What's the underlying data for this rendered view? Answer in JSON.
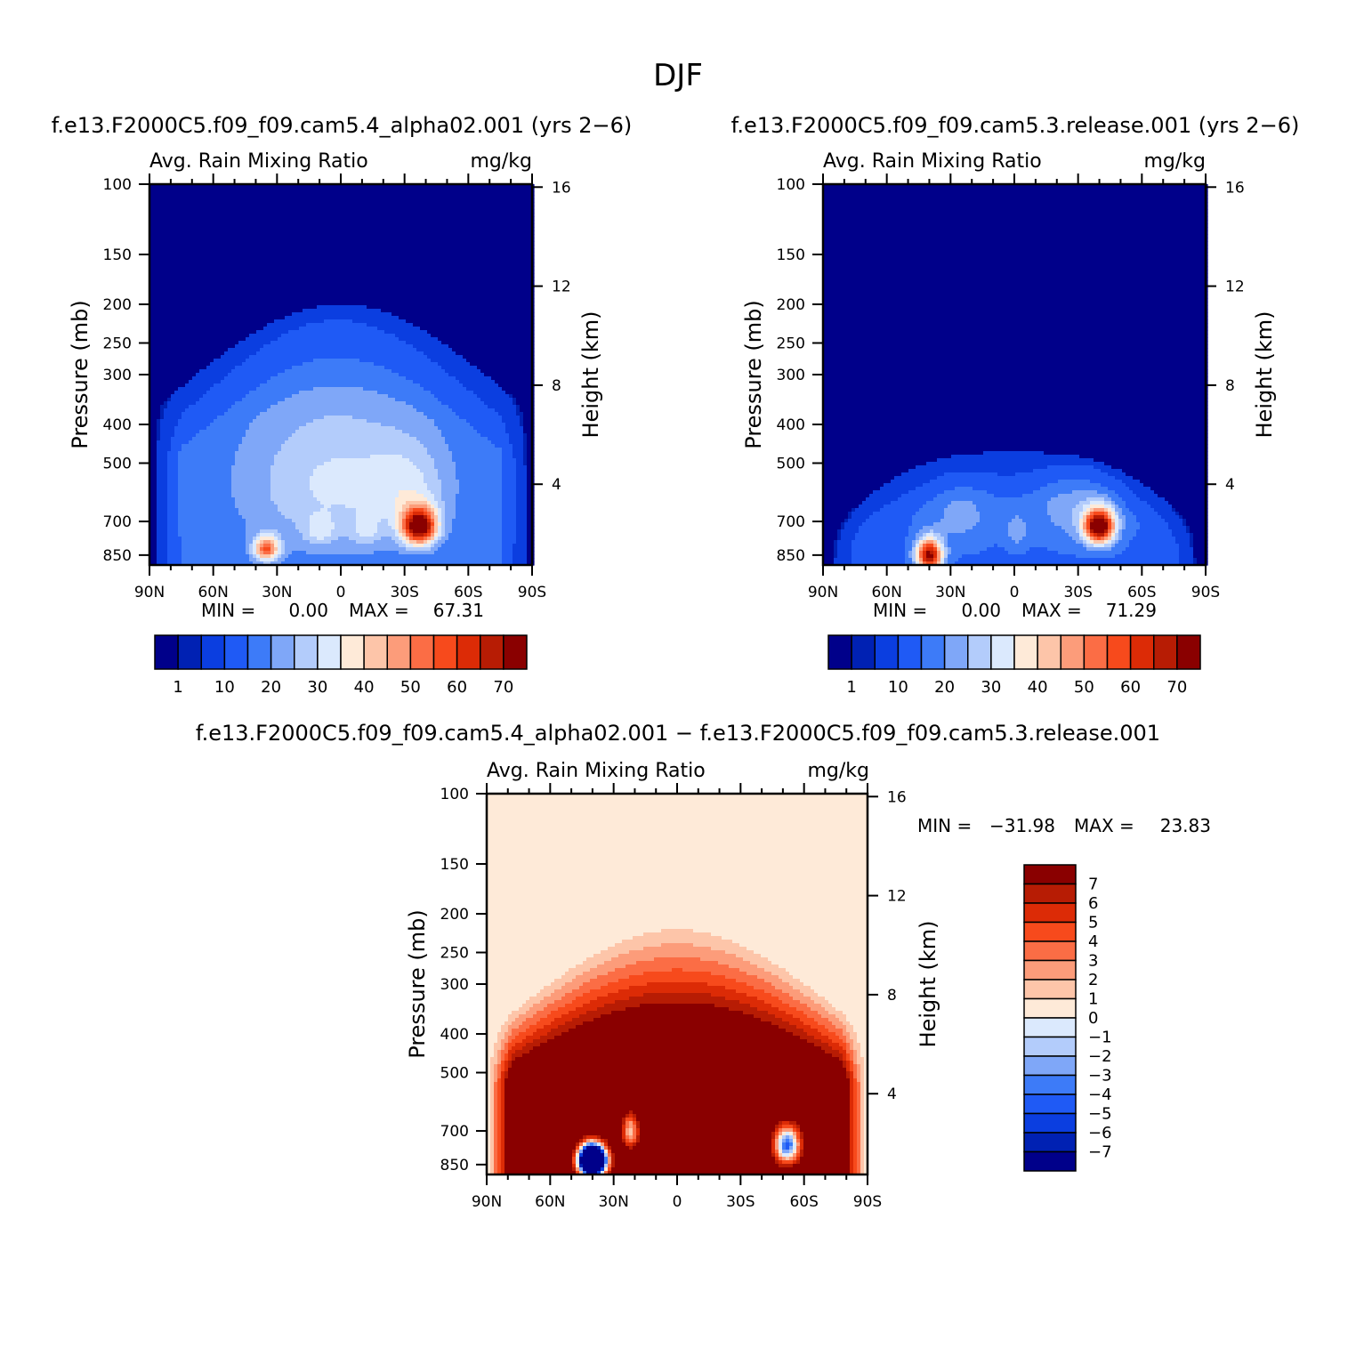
{
  "page_title": "DJF",
  "colors": {
    "full_scale": [
      "#00008a",
      "#0021b3",
      "#0b3ee0",
      "#1f5af5",
      "#3d7bf8",
      "#7fa7f8",
      "#b3ccfb",
      "#dbe9fd",
      "#feead8",
      "#fdc5a9",
      "#fc9c7a",
      "#fb6d45",
      "#f74a1c",
      "#dc2b06",
      "#b71c04",
      "#8a0000"
    ],
    "diff_scale": [
      "#00008a",
      "#0021b3",
      "#0b3ee0",
      "#1f5af5",
      "#3d7bf8",
      "#7fa7f8",
      "#b3ccfb",
      "#dbe9fd",
      "#feead8",
      "#fdc5a9",
      "#fc9c7a",
      "#fb6d45",
      "#f74a1c",
      "#dc2b06",
      "#b71c04",
      "#8a0000"
    ]
  },
  "chart_data": [
    {
      "type": "heatmap",
      "title": "f.e13.F2000C5.f09_f09.cam5.4_alpha02.001 (yrs 2−6)",
      "variable": "Avg. Rain Mixing Ratio",
      "units": "mg/kg",
      "ylabel": "Pressure (mb)",
      "y2label": "Height (km)",
      "x_ticks": [
        "90N",
        "60N",
        "30N",
        "0",
        "30S",
        "60S",
        "90S"
      ],
      "y_ticks": [
        "100",
        "150",
        "200",
        "250",
        "300",
        "400",
        "500",
        "700",
        "850"
      ],
      "y2_ticks": [
        "16",
        "12",
        "8",
        "4"
      ],
      "ylim": [
        850,
        100
      ],
      "y_scale": "log",
      "min_label": "MIN =",
      "min_value": "0.00",
      "max_label": "MAX =",
      "max_value": "67.31",
      "colorbar_labels": [
        "1",
        "10",
        "20",
        "30",
        "40",
        "50",
        "60",
        "70"
      ],
      "features": [
        {
          "lat": -37,
          "p": 720,
          "peak": 67.31
        },
        {
          "lat": 37,
          "p": 820,
          "peak": 45
        }
      ]
    },
    {
      "type": "heatmap",
      "title": "f.e13.F2000C5.f09_f09.cam5.3.release.001 (yrs 2−6)",
      "variable": "Avg. Rain Mixing Ratio",
      "units": "mg/kg",
      "ylabel": "Pressure (mb)",
      "y2label": "Height (km)",
      "x_ticks": [
        "90N",
        "60N",
        "30N",
        "0",
        "30S",
        "60S",
        "90S"
      ],
      "y_ticks": [
        "100",
        "150",
        "200",
        "250",
        "300",
        "400",
        "500",
        "700",
        "850"
      ],
      "y2_ticks": [
        "16",
        "12",
        "8",
        "4"
      ],
      "ylim": [
        850,
        100
      ],
      "y_scale": "log",
      "min_label": "MIN =",
      "min_value": "0.00",
      "max_label": "MAX =",
      "max_value": "71.29",
      "colorbar_labels": [
        "1",
        "10",
        "20",
        "30",
        "40",
        "50",
        "60",
        "70"
      ],
      "features": [
        {
          "lat": -40,
          "p": 720,
          "peak": 71.29
        },
        {
          "lat": 40,
          "p": 850,
          "peak": 62
        }
      ]
    },
    {
      "type": "heatmap",
      "title": "f.e13.F2000C5.f09_f09.cam5.4_alpha02.001 − f.e13.F2000C5.f09_f09.cam5.3.release.001",
      "variable": "Avg. Rain Mixing Ratio",
      "units": "mg/kg",
      "ylabel": "Pressure (mb)",
      "y2label": "Height (km)",
      "x_ticks": [
        "90N",
        "60N",
        "30N",
        "0",
        "30S",
        "60S",
        "90S"
      ],
      "y_ticks": [
        "100",
        "150",
        "200",
        "250",
        "300",
        "400",
        "500",
        "700",
        "850"
      ],
      "y2_ticks": [
        "16",
        "12",
        "8",
        "4"
      ],
      "ylim": [
        850,
        100
      ],
      "y_scale": "log",
      "min_label": "MIN =",
      "min_value": "−31.98",
      "max_label": "MAX =",
      "max_value": "23.83",
      "colorbar_labels": [
        "7",
        "6",
        "5",
        "4",
        "3",
        "2",
        "1",
        "0",
        "−1",
        "−2",
        "−3",
        "−4",
        "−5",
        "−6",
        "−7"
      ],
      "features": [
        {
          "lat": 0,
          "p": 450,
          "peak": 23.83
        },
        {
          "lat": 40,
          "p": 800,
          "peak": -31.98
        },
        {
          "lat": -52,
          "p": 780,
          "peak": -12
        }
      ]
    }
  ]
}
